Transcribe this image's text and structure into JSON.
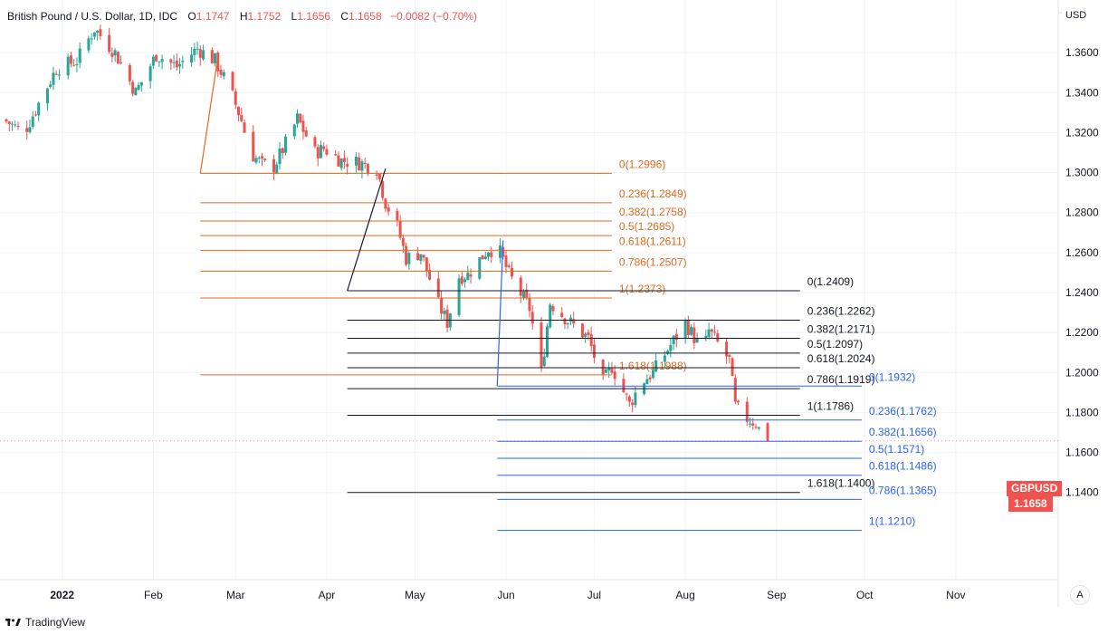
{
  "header": {
    "symbol": "British Pound / U.S. Dollar, 1D, IDC",
    "open_label": "O",
    "open": "1.1747",
    "high_label": "H",
    "high": "1.1752",
    "low_label": "L",
    "low": "1.1656",
    "close_label": "C",
    "close": "1.1658",
    "change": "−0.0082 (−0.70%)"
  },
  "currency": "USD",
  "price_badge": {
    "symbol": "GBPUSD",
    "value": "1.1658"
  },
  "auto_button": "A",
  "brand": "TradingView",
  "colors": {
    "up": "#26a69a",
    "down": "#ef5350",
    "fib1": "#e06a1c",
    "fib2": "#131722",
    "fib3": "#2962ff",
    "grid": "#f0f3fa"
  },
  "chart_data": {
    "type": "candlestick",
    "ylim": [
      1.1,
      1.375
    ],
    "y_ticks": [
      "1.1400",
      "1.1600",
      "1.1800",
      "1.2000",
      "1.2200",
      "1.2400",
      "1.2600",
      "1.2800",
      "1.3000",
      "1.3200",
      "1.3400",
      "1.3600"
    ],
    "x_ticks": [
      {
        "label": "2022",
        "date": "2022-01-01",
        "bold": true
      },
      {
        "label": "Feb",
        "date": "2022-02-01"
      },
      {
        "label": "Mar",
        "date": "2022-03-01"
      },
      {
        "label": "Apr",
        "date": "2022-04-01"
      },
      {
        "label": "May",
        "date": "2022-05-01"
      },
      {
        "label": "Jun",
        "date": "2022-06-01"
      },
      {
        "label": "Jul",
        "date": "2022-07-01"
      },
      {
        "label": "Aug",
        "date": "2022-08-01"
      },
      {
        "label": "Sep",
        "date": "2022-09-01"
      },
      {
        "label": "Oct",
        "date": "2022-10-01"
      },
      {
        "label": "Nov",
        "date": "2022-11-01"
      }
    ],
    "anchors": [
      [
        "2021-12-13",
        1.3265
      ],
      [
        "2021-12-20",
        1.32
      ],
      [
        "2021-12-31",
        1.352
      ],
      [
        "2022-01-07",
        1.356
      ],
      [
        "2022-01-13",
        1.372
      ],
      [
        "2022-01-20",
        1.36
      ],
      [
        "2022-01-27",
        1.34
      ],
      [
        "2022-02-03",
        1.359
      ],
      [
        "2022-02-10",
        1.353
      ],
      [
        "2022-02-17",
        1.362
      ],
      [
        "2022-02-23",
        1.356
      ],
      [
        "2022-02-28",
        1.342
      ],
      [
        "2022-03-04",
        1.326
      ],
      [
        "2022-03-07",
        1.31
      ],
      [
        "2022-03-11",
        1.304
      ],
      [
        "2022-03-15",
        1.303
      ],
      [
        "2022-03-21",
        1.32
      ],
      [
        "2022-03-23",
        1.327
      ],
      [
        "2022-03-29",
        1.31
      ],
      [
        "2022-04-01",
        1.312
      ],
      [
        "2022-04-07",
        1.306
      ],
      [
        "2022-04-13",
        1.305
      ],
      [
        "2022-04-19",
        1.302
      ],
      [
        "2022-04-22",
        1.285
      ],
      [
        "2022-04-26",
        1.273
      ],
      [
        "2022-04-29",
        1.257
      ],
      [
        "2022-05-04",
        1.26
      ],
      [
        "2022-05-10",
        1.234
      ],
      [
        "2022-05-13",
        1.225
      ],
      [
        "2022-05-17",
        1.248
      ],
      [
        "2022-05-20",
        1.249
      ],
      [
        "2022-05-27",
        1.262
      ],
      [
        "2022-05-31",
        1.26
      ],
      [
        "2022-06-03",
        1.249
      ],
      [
        "2022-06-10",
        1.232
      ],
      [
        "2022-06-14",
        1.2
      ],
      [
        "2022-06-17",
        1.235
      ],
      [
        "2022-06-23",
        1.226
      ],
      [
        "2022-06-30",
        1.217
      ],
      [
        "2022-07-05",
        1.195
      ],
      [
        "2022-07-08",
        1.203
      ],
      [
        "2022-07-14",
        1.184
      ],
      [
        "2022-07-18",
        1.195
      ],
      [
        "2022-07-22",
        1.2
      ],
      [
        "2022-07-29",
        1.216
      ],
      [
        "2022-08-02",
        1.225
      ],
      [
        "2022-08-08",
        1.21
      ],
      [
        "2022-08-10",
        1.221
      ],
      [
        "2022-08-17",
        1.206
      ],
      [
        "2022-08-19",
        1.183
      ],
      [
        "2022-08-23",
        1.177
      ],
      [
        "2022-08-26",
        1.1747
      ],
      [
        "2022-08-29",
        1.1658
      ]
    ],
    "last_candle": {
      "date": "2022-08-29",
      "open": 1.1747,
      "high": 1.1752,
      "low": 1.1656,
      "close": 1.1658
    },
    "fibonacci": [
      {
        "id": "fib-1",
        "color": "#e06a1c",
        "trend": {
          "from": [
            "2022-02-23",
            1.358
          ],
          "to": [
            "2022-02-17",
            1.2996
          ]
        },
        "lines_from": "2022-02-17",
        "lines_to": "2022-07-07",
        "levels": [
          {
            "value": 1.2996,
            "label": "0(1.2996)"
          },
          {
            "value": 1.2849,
            "label": "0.236(1.2849)"
          },
          {
            "value": 1.2758,
            "label": "0.382(1.2758)"
          },
          {
            "value": 1.2685,
            "label": "0.5(1.2685)"
          },
          {
            "value": 1.2611,
            "label": "0.618(1.2611)"
          },
          {
            "value": 1.2507,
            "label": "0.786(1.2507)"
          },
          {
            "value": 1.2373,
            "label": "1(1.2373)"
          },
          {
            "value": 1.1988,
            "label": "1.618(1.1988)"
          }
        ]
      },
      {
        "id": "fib-2",
        "color": "#131722",
        "trend": {
          "from": [
            "2022-04-21",
            1.302
          ],
          "to": [
            "2022-04-08",
            1.2409
          ]
        },
        "lines_from": "2022-04-08",
        "lines_to": "2022-09-09",
        "levels": [
          {
            "value": 1.2409,
            "label": "0(1.2409)"
          },
          {
            "value": 1.2262,
            "label": "0.236(1.2262)"
          },
          {
            "value": 1.2171,
            "label": "0.382(1.2171)"
          },
          {
            "value": 1.2097,
            "label": "0.5(1.2097)"
          },
          {
            "value": 1.2024,
            "label": "0.618(1.2024)"
          },
          {
            "value": 1.1919,
            "label": "0.786(1.1919)"
          },
          {
            "value": 1.1786,
            "label": "1(1.1786)"
          },
          {
            "value": 1.14,
            "label": "1.618(1.1400)"
          }
        ]
      },
      {
        "id": "fib-3",
        "color": "#2962ff",
        "trend": {
          "from": [
            "2022-05-31",
            1.266
          ],
          "to": [
            "2022-05-29",
            1.1932
          ]
        },
        "lines_from": "2022-05-29",
        "lines_to": "2022-09-30",
        "levels": [
          {
            "value": 1.1932,
            "label": "0(1.1932)"
          },
          {
            "value": 1.1762,
            "label": "0.236(1.1762)"
          },
          {
            "value": 1.1656,
            "label": "0.382(1.1656)"
          },
          {
            "value": 1.1571,
            "label": "0.5(1.1571)"
          },
          {
            "value": 1.1486,
            "label": "0.618(1.1486)"
          },
          {
            "value": 1.1365,
            "label": "0.786(1.1365)"
          },
          {
            "value": 1.121,
            "label": "1(1.1210)"
          }
        ]
      }
    ]
  }
}
